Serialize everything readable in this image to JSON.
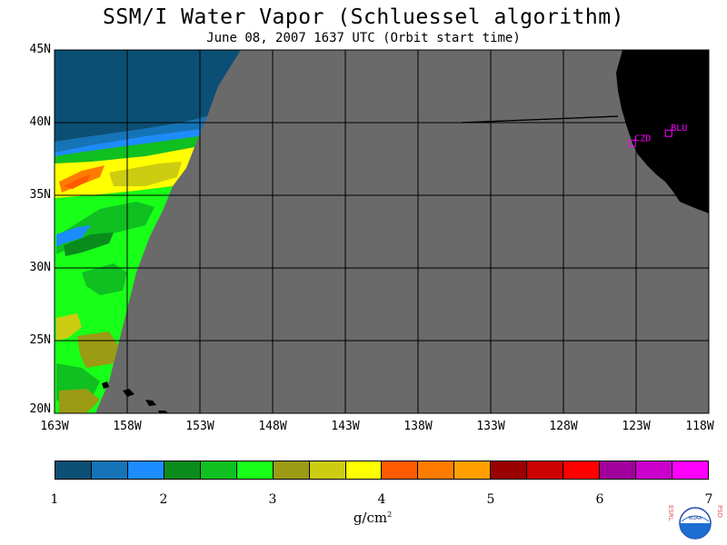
{
  "title": "SSM/I Water Vapor (Schluessel algorithm)",
  "subtitle": "June 08, 2007  1637 UTC  (Orbit start time)",
  "lat_labels": [
    "45N",
    "40N",
    "35N",
    "30N",
    "25N",
    "20N"
  ],
  "lon_labels": [
    "163W",
    "158W",
    "153W",
    "148W",
    "143W",
    "138W",
    "133W",
    "128W",
    "123W",
    "118W"
  ],
  "stations": [
    {
      "name": "CZD",
      "lon": -123.3,
      "lat": 38.6
    },
    {
      "name": "BLU",
      "lon": -120.8,
      "lat": 39.3
    }
  ],
  "colorbar": {
    "colors": [
      "#0b4f74",
      "#1574b8",
      "#1c8cff",
      "#0a8c1c",
      "#0fc020",
      "#18ff18",
      "#9b9b14",
      "#cccc12",
      "#ffff00",
      "#ff5a00",
      "#ff7c00",
      "#ffa000",
      "#990000",
      "#cc0000",
      "#ff0000",
      "#a0009b",
      "#cc00cc",
      "#ff00ff"
    ],
    "tick_labels": [
      "1",
      "2",
      "3",
      "4",
      "5",
      "6",
      "7"
    ],
    "units_base": "g/cm",
    "units_sup": "2"
  },
  "colors": {
    "no_data": "#6a6a6a",
    "land": "#000000",
    "station": "#ff00ff"
  },
  "logo": {
    "left_text": "ESRL",
    "right_text": "PSD",
    "center_text": "NOAA"
  }
}
